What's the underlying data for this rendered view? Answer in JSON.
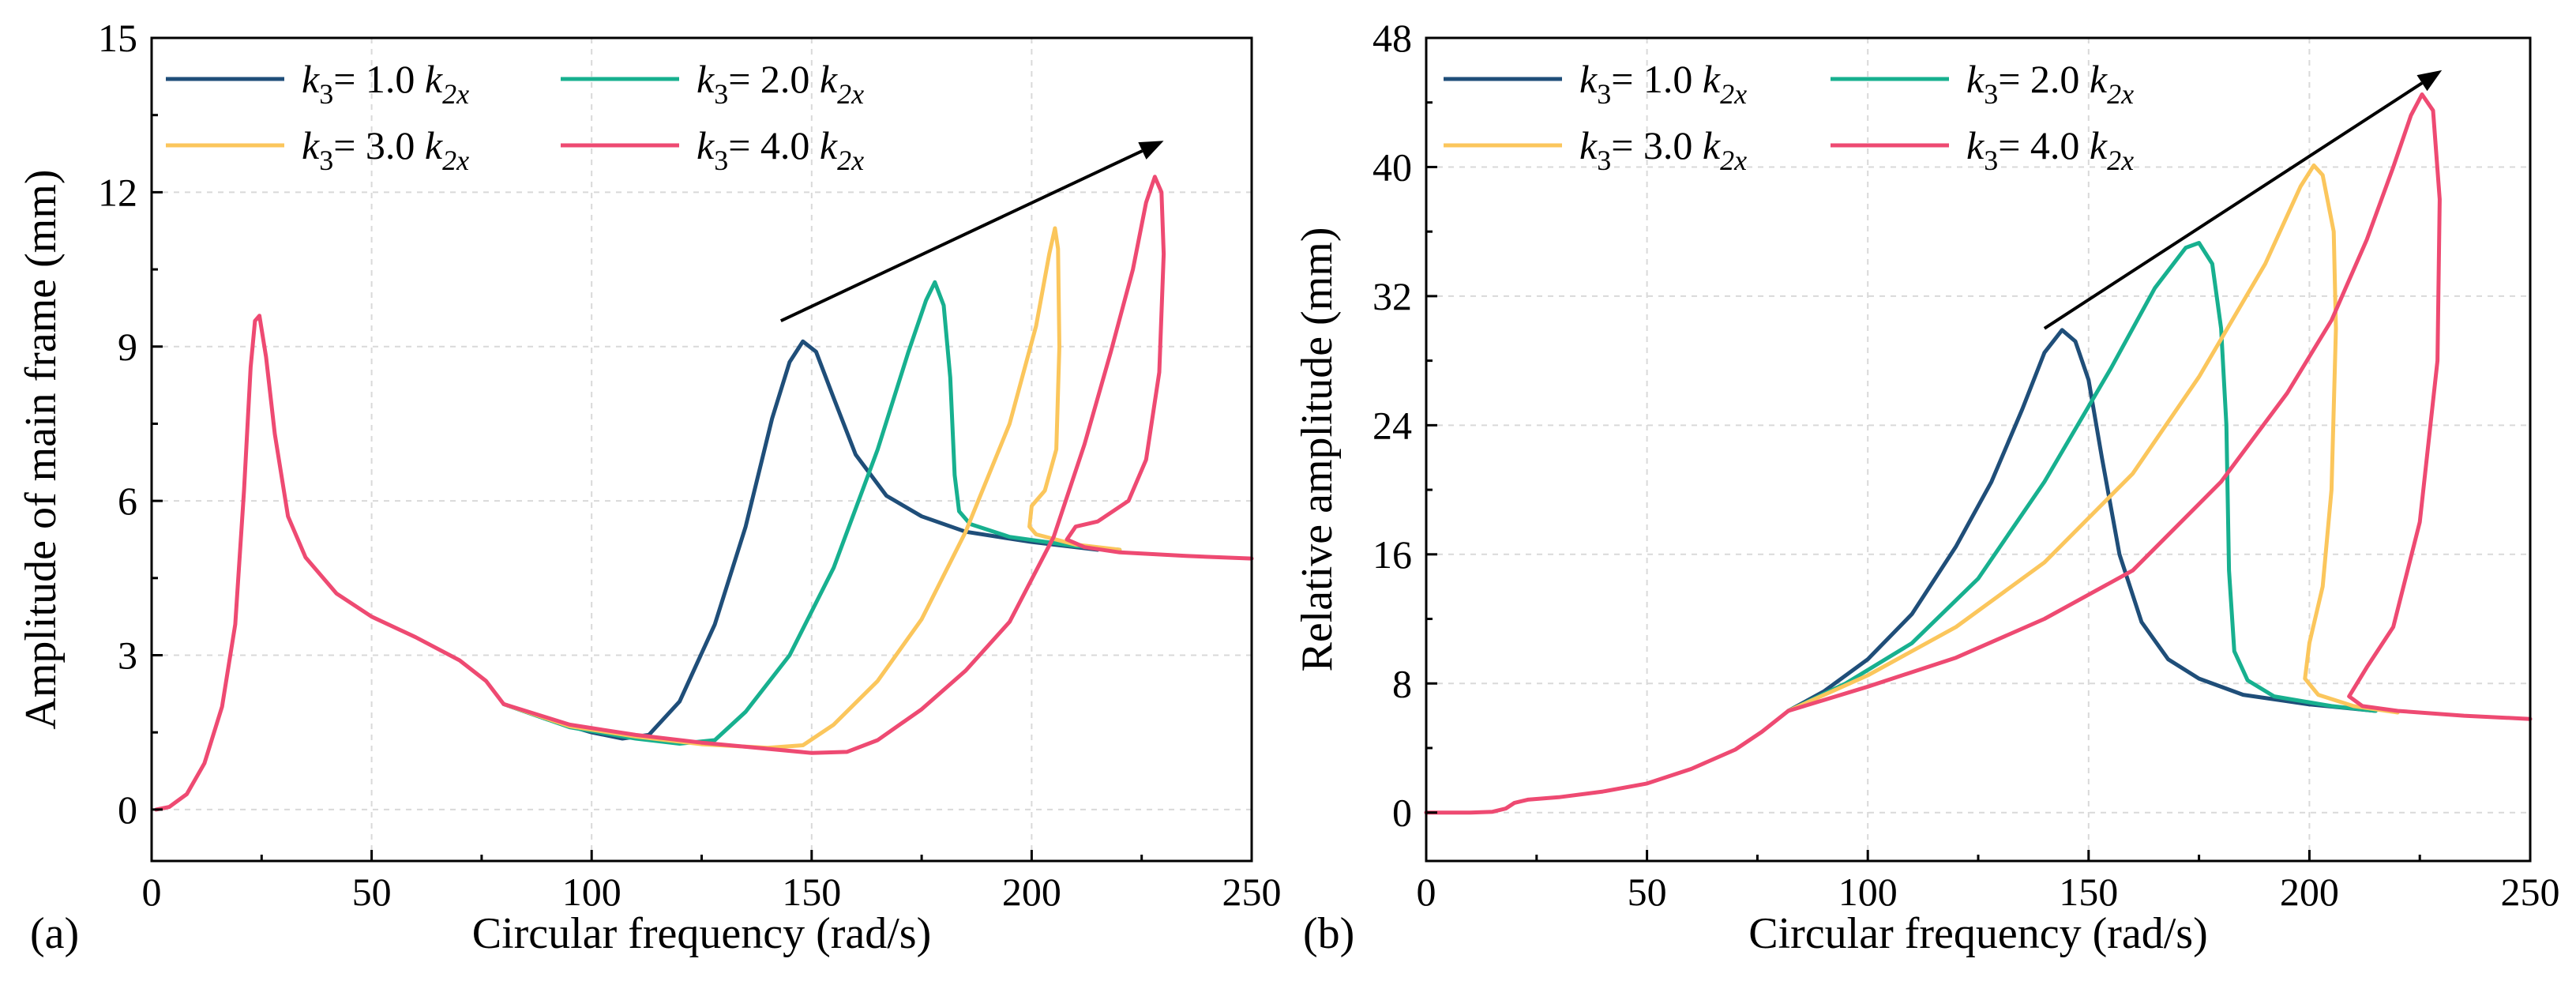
{
  "chart_data": [
    {
      "type": "line",
      "panel_label": "(a)",
      "xlabel": "Circular frequency (rad/s)",
      "ylabel": "Amplitude of main frame (mm)",
      "xlim": [
        0,
        250
      ],
      "ylim": [
        -1,
        15
      ],
      "xticks": [
        0,
        50,
        100,
        150,
        200,
        250
      ],
      "yticks": [
        0,
        3,
        6,
        9,
        12,
        15
      ],
      "grid": true,
      "legend_position": "top-left",
      "annotation": "arrow indicating peak shift to higher frequency and amplitude",
      "arrow": {
        "from": [
          143,
          9.5
        ],
        "to": [
          230,
          13.0
        ]
      },
      "series": [
        {
          "name": "k3 = 1.0 k2x",
          "legend": {
            "sym": "k",
            "sub": "3",
            "mid": "= 1.0 ",
            "sym2": "k",
            "sub2": "2x"
          },
          "color": "#1f4e79",
          "points": [
            [
              80,
              2.05
            ],
            [
              90,
              1.75
            ],
            [
              100,
              1.5
            ],
            [
              107,
              1.38
            ],
            [
              113,
              1.45
            ],
            [
              120,
              2.1
            ],
            [
              128,
              3.6
            ],
            [
              135,
              5.5
            ],
            [
              141,
              7.6
            ],
            [
              145,
              8.7
            ],
            [
              148,
              9.1
            ],
            [
              151,
              8.9
            ],
            [
              155,
              8.0
            ],
            [
              160,
              6.9
            ],
            [
              167,
              6.1
            ],
            [
              175,
              5.7
            ],
            [
              185,
              5.4
            ],
            [
              200,
              5.2
            ],
            [
              215,
              5.05
            ]
          ]
        },
        {
          "name": "k3 = 2.0 k2x",
          "legend": {
            "sym": "k",
            "sub": "3",
            "mid": "= 2.0 ",
            "sym2": "k",
            "sub2": "2x"
          },
          "color": "#17b08f",
          "points": [
            [
              80,
              2.05
            ],
            [
              95,
              1.6
            ],
            [
              110,
              1.38
            ],
            [
              120,
              1.28
            ],
            [
              128,
              1.35
            ],
            [
              135,
              1.9
            ],
            [
              145,
              3.0
            ],
            [
              155,
              4.7
            ],
            [
              165,
              7.0
            ],
            [
              172,
              8.9
            ],
            [
              176,
              9.9
            ],
            [
              178,
              10.25
            ],
            [
              180,
              9.8
            ],
            [
              181.5,
              8.4
            ],
            [
              182.5,
              6.5
            ],
            [
              183.5,
              5.8
            ],
            [
              186,
              5.55
            ],
            [
              195,
              5.3
            ],
            [
              210,
              5.12
            ],
            [
              220,
              5.05
            ]
          ]
        },
        {
          "name": "k3 = 3.0 k2x",
          "legend": {
            "sym": "k",
            "sub": "3",
            "mid": "= 3.0 ",
            "sym2": "k",
            "sub2": "2x"
          },
          "color": "#fbc65c",
          "points": [
            [
              80,
              2.05
            ],
            [
              95,
              1.62
            ],
            [
              110,
              1.42
            ],
            [
              125,
              1.27
            ],
            [
              140,
              1.2
            ],
            [
              148,
              1.25
            ],
            [
              155,
              1.65
            ],
            [
              165,
              2.5
            ],
            [
              175,
              3.7
            ],
            [
              185,
              5.4
            ],
            [
              195,
              7.5
            ],
            [
              201,
              9.4
            ],
            [
              204,
              10.8
            ],
            [
              205.3,
              11.3
            ],
            [
              206,
              10.9
            ],
            [
              206.3,
              9.0
            ],
            [
              205.6,
              7.0
            ],
            [
              203,
              6.2
            ],
            [
              200,
              5.9
            ],
            [
              199.5,
              5.5
            ],
            [
              201,
              5.35
            ],
            [
              210,
              5.15
            ],
            [
              220,
              5.05
            ]
          ]
        },
        {
          "name": "k3 = 4.0 k2x",
          "legend": {
            "sym": "k",
            "sub": "3",
            "mid": "= 4.0 ",
            "sym2": "k",
            "sub2": "2x"
          },
          "color": "#ee4a72",
          "points": [
            [
              1,
              0.0
            ],
            [
              4,
              0.05
            ],
            [
              8,
              0.3
            ],
            [
              12,
              0.9
            ],
            [
              16,
              2.0
            ],
            [
              19,
              3.6
            ],
            [
              21,
              6.2
            ],
            [
              22.5,
              8.6
            ],
            [
              23.5,
              9.5
            ],
            [
              24.5,
              9.6
            ],
            [
              26,
              8.8
            ],
            [
              28,
              7.3
            ],
            [
              31,
              5.7
            ],
            [
              35,
              4.9
            ],
            [
              42,
              4.2
            ],
            [
              50,
              3.75
            ],
            [
              60,
              3.35
            ],
            [
              70,
              2.9
            ],
            [
              76,
              2.5
            ],
            [
              80,
              2.05
            ],
            [
              95,
              1.65
            ],
            [
              110,
              1.45
            ],
            [
              125,
              1.3
            ],
            [
              140,
              1.18
            ],
            [
              150,
              1.1
            ],
            [
              158,
              1.12
            ],
            [
              165,
              1.35
            ],
            [
              175,
              1.95
            ],
            [
              185,
              2.7
            ],
            [
              195,
              3.65
            ],
            [
              205,
              5.3
            ],
            [
              212,
              7.1
            ],
            [
              218,
              8.9
            ],
            [
              223,
              10.5
            ],
            [
              226,
              11.8
            ],
            [
              228,
              12.3
            ],
            [
              229.5,
              12.0
            ],
            [
              230,
              10.8
            ],
            [
              229,
              8.5
            ],
            [
              226,
              6.8
            ],
            [
              222,
              6.0
            ],
            [
              215,
              5.6
            ],
            [
              210,
              5.5
            ],
            [
              208,
              5.25
            ],
            [
              212,
              5.1
            ],
            [
              220,
              5.0
            ],
            [
              235,
              4.93
            ],
            [
              250,
              4.88
            ]
          ]
        }
      ]
    },
    {
      "type": "line",
      "panel_label": "(b)",
      "xlabel": "Circular frequency (rad/s)",
      "ylabel": "Relative amplitude (mm)",
      "xlim": [
        0,
        250
      ],
      "ylim": [
        -3,
        48
      ],
      "xticks": [
        0,
        50,
        100,
        150,
        200,
        250
      ],
      "yticks": [
        0,
        8,
        16,
        24,
        32,
        40,
        48
      ],
      "grid": true,
      "legend_position": "top-left",
      "annotation": "arrow indicating peak shift to higher frequency and amplitude",
      "arrow": {
        "from": [
          140,
          30
        ],
        "to": [
          230,
          46
        ]
      },
      "series": [
        {
          "name": "k3 = 1.0 k2x",
          "legend": {
            "sym": "k",
            "sub": "3",
            "mid": "= 1.0 ",
            "sym2": "k",
            "sub2": "2x"
          },
          "color": "#1f4e79",
          "points": [
            [
              82,
              6.3
            ],
            [
              90,
              7.5
            ],
            [
              100,
              9.5
            ],
            [
              110,
              12.3
            ],
            [
              120,
              16.5
            ],
            [
              128,
              20.5
            ],
            [
              135,
              25.0
            ],
            [
              140,
              28.5
            ],
            [
              144,
              29.9
            ],
            [
              147,
              29.2
            ],
            [
              150,
              26.8
            ],
            [
              153,
              22.0
            ],
            [
              157,
              16.0
            ],
            [
              162,
              11.8
            ],
            [
              168,
              9.5
            ],
            [
              175,
              8.3
            ],
            [
              185,
              7.3
            ],
            [
              200,
              6.7
            ],
            [
              215,
              6.3
            ]
          ]
        },
        {
          "name": "k3 = 2.0 k2x",
          "legend": {
            "sym": "k",
            "sub": "3",
            "mid": "= 2.0 ",
            "sym2": "k",
            "sub2": "2x"
          },
          "color": "#17b08f",
          "points": [
            [
              82,
              6.3
            ],
            [
              95,
              8.0
            ],
            [
              110,
              10.5
            ],
            [
              125,
              14.5
            ],
            [
              140,
              20.5
            ],
            [
              155,
              27.5
            ],
            [
              165,
              32.5
            ],
            [
              172,
              35.0
            ],
            [
              175,
              35.3
            ],
            [
              178,
              34.0
            ],
            [
              180,
              30.0
            ],
            [
              181.2,
              24.0
            ],
            [
              181.8,
              15.0
            ],
            [
              183,
              10.0
            ],
            [
              186,
              8.2
            ],
            [
              192,
              7.2
            ],
            [
              205,
              6.6
            ],
            [
              215,
              6.3
            ]
          ]
        },
        {
          "name": "k3 = 3.0 k2x",
          "legend": {
            "sym": "k",
            "sub": "3",
            "mid": "= 3.0 ",
            "sym2": "k",
            "sub2": "2x"
          },
          "color": "#fbc65c",
          "points": [
            [
              82,
              6.3
            ],
            [
              100,
              8.5
            ],
            [
              120,
              11.5
            ],
            [
              140,
              15.5
            ],
            [
              160,
              21.0
            ],
            [
              175,
              27.0
            ],
            [
              190,
              34.0
            ],
            [
              198,
              38.8
            ],
            [
              201,
              40.1
            ],
            [
              203,
              39.5
            ],
            [
              205.5,
              36.0
            ],
            [
              206,
              30.0
            ],
            [
              205,
              20.0
            ],
            [
              203,
              14.0
            ],
            [
              200,
              10.5
            ],
            [
              199,
              8.3
            ],
            [
              202,
              7.3
            ],
            [
              210,
              6.6
            ],
            [
              220,
              6.2
            ]
          ]
        },
        {
          "name": "k3 = 4.0 k2x",
          "legend": {
            "sym": "k",
            "sub": "3",
            "mid": "= 4.0 ",
            "sym2": "k",
            "sub2": "2x"
          },
          "color": "#ee4a72",
          "points": [
            [
              0,
              0.0
            ],
            [
              10,
              0.0
            ],
            [
              15,
              0.05
            ],
            [
              18,
              0.25
            ],
            [
              20,
              0.6
            ],
            [
              23,
              0.8
            ],
            [
              30,
              0.95
            ],
            [
              40,
              1.3
            ],
            [
              50,
              1.8
            ],
            [
              60,
              2.7
            ],
            [
              70,
              3.9
            ],
            [
              76,
              5.0
            ],
            [
              82,
              6.3
            ],
            [
              100,
              7.8
            ],
            [
              120,
              9.6
            ],
            [
              140,
              12.0
            ],
            [
              160,
              15.0
            ],
            [
              180,
              20.5
            ],
            [
              195,
              26.0
            ],
            [
              205,
              30.5
            ],
            [
              213,
              35.5
            ],
            [
              219,
              40.0
            ],
            [
              223,
              43.2
            ],
            [
              225.5,
              44.5
            ],
            [
              228,
              43.5
            ],
            [
              229.5,
              38.0
            ],
            [
              229,
              28.0
            ],
            [
              225,
              18.0
            ],
            [
              219,
              11.5
            ],
            [
              213,
              9.0
            ],
            [
              209,
              7.2
            ],
            [
              212,
              6.6
            ],
            [
              220,
              6.3
            ],
            [
              235,
              6.0
            ],
            [
              250,
              5.8
            ]
          ]
        }
      ]
    }
  ]
}
